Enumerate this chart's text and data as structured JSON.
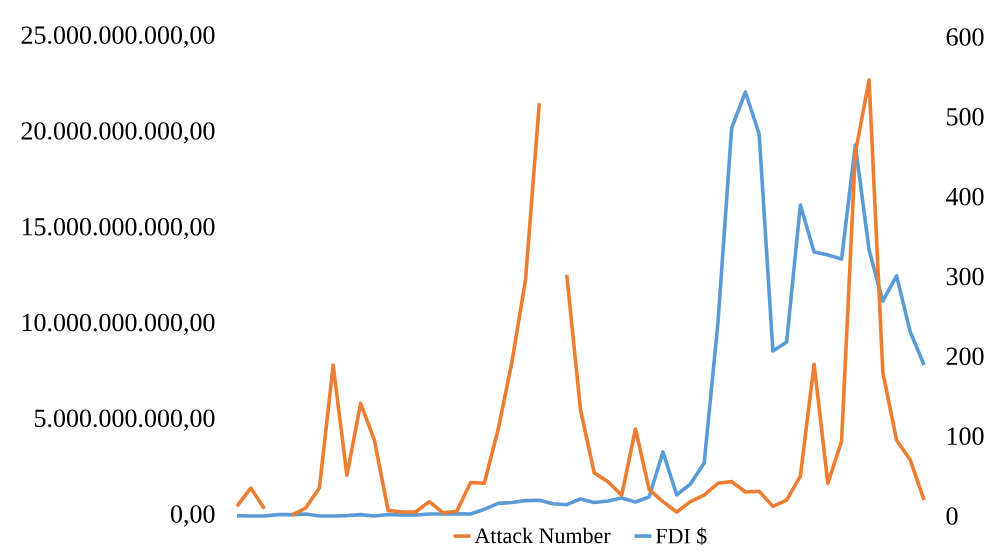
{
  "chart_data": {
    "type": "line",
    "categories": [
      null,
      null,
      null,
      null,
      null,
      null,
      null,
      null,
      null,
      null,
      null,
      null,
      null,
      null,
      null,
      null,
      null,
      null,
      null,
      null,
      null,
      null,
      null,
      null,
      null,
      null,
      null,
      null,
      null,
      null,
      null,
      null,
      null,
      null,
      null,
      null,
      null,
      null,
      null,
      null,
      null,
      null,
      null,
      null,
      null,
      null,
      null,
      null,
      null,
      null,
      null
    ],
    "series": [
      {
        "name": "Attack Number",
        "color": "#ed7d31",
        "axis": "y2",
        "values": [
          12,
          35,
          9,
          null,
          1,
          10,
          35,
          189,
          51,
          141,
          95,
          7,
          5,
          5,
          18,
          4,
          6,
          42,
          41,
          108,
          192,
          296,
          517,
          null,
          302,
          133,
          54,
          43,
          26,
          109,
          33,
          18,
          5,
          18,
          26,
          41,
          43,
          30,
          31,
          12,
          20,
          50,
          190,
          41,
          94,
          455,
          546,
          180,
          95,
          70,
          20
        ]
      },
      {
        "name": "FDI $",
        "color": "#5b9bd5",
        "values": [
          20000000,
          0,
          0,
          70000000,
          70000000,
          100000000,
          0,
          0,
          20000000,
          70000000,
          0,
          80000000,
          50000000,
          50000000,
          100000000,
          100000000,
          120000000,
          100000000,
          350000000,
          660000000,
          700000000,
          800000000,
          820000000,
          640000000,
          590000000,
          890000000,
          700000000,
          780000000,
          940000000,
          730000000,
          1000000000,
          3340000000,
          1100000000,
          1670000000,
          2770000000,
          10070000000,
          20250000000,
          22130000000,
          19940000000,
          8610000000,
          9080000000,
          16230000000,
          13780000000,
          13620000000,
          13410000000,
          19360000000,
          13880000000,
          11220000000,
          12530000000,
          9600000000,
          7880000000
        ]
      }
    ],
    "ylim": [
      0,
      25000000000
    ],
    "yticks": [
      {
        "value": 0,
        "label": "0,00"
      },
      {
        "value": 5000000000,
        "label": "5.000.000.000,00"
      },
      {
        "value": 10000000000,
        "label": "10.000.000.000,00"
      },
      {
        "value": 15000000000,
        "label": "15.000.000.000,00"
      },
      {
        "value": 20000000000,
        "label": "20.000.000.000,00"
      },
      {
        "value": 25000000000,
        "label": "25.000.000.000,00"
      }
    ],
    "y2lim": [
      0,
      600
    ],
    "y2ticks": [
      0,
      100,
      200,
      300,
      400,
      500,
      600
    ],
    "legend": "bottom",
    "grid": false
  }
}
